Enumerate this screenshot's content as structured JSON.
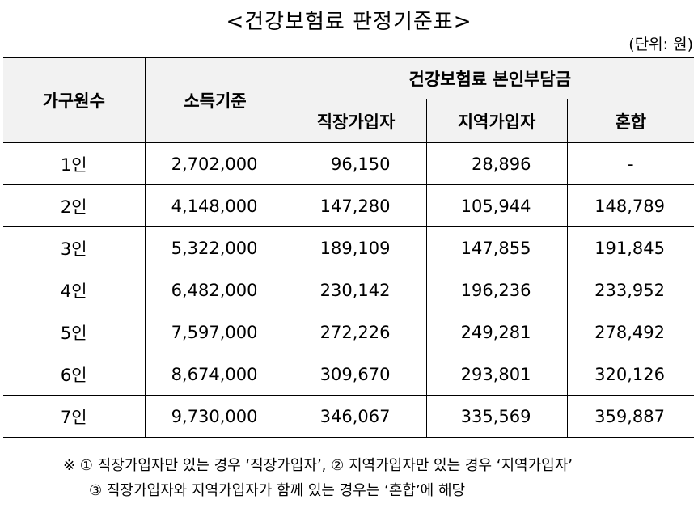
{
  "title": "<건강보험료 판정기준표>",
  "unit": "(단위: 원)",
  "headers": {
    "household": "가구원수",
    "income": "소득기준",
    "premium_group": "건강보험료 본인부담금",
    "employee": "직장가입자",
    "regional": "지역가입자",
    "mixed": "혼합"
  },
  "rows": [
    {
      "household": "1인",
      "income": "2,702,000",
      "employee": "96,150",
      "regional": "28,896",
      "mixed": "-"
    },
    {
      "household": "2인",
      "income": "4,148,000",
      "employee": "147,280",
      "regional": "105,944",
      "mixed": "148,789"
    },
    {
      "household": "3인",
      "income": "5,322,000",
      "employee": "189,109",
      "regional": "147,855",
      "mixed": "191,845"
    },
    {
      "household": "4인",
      "income": "6,482,000",
      "employee": "230,142",
      "regional": "196,236",
      "mixed": "233,952"
    },
    {
      "household": "5인",
      "income": "7,597,000",
      "employee": "272,226",
      "regional": "249,281",
      "mixed": "278,492"
    },
    {
      "household": "6인",
      "income": "8,674,000",
      "employee": "309,670",
      "regional": "293,801",
      "mixed": "320,126"
    },
    {
      "household": "7인",
      "income": "9,730,000",
      "employee": "346,067",
      "regional": "335,569",
      "mixed": "359,887"
    }
  ],
  "notes": {
    "line1": "※ ① 직장가입자만 있는 경우 ‘직장가입자’, ② 지역가입자만 있는 경우 ‘지역가입자’",
    "line2": "③ 직장가입자와 지역가입자가 함께 있는 경우는 ‘혼합’에 해당"
  }
}
